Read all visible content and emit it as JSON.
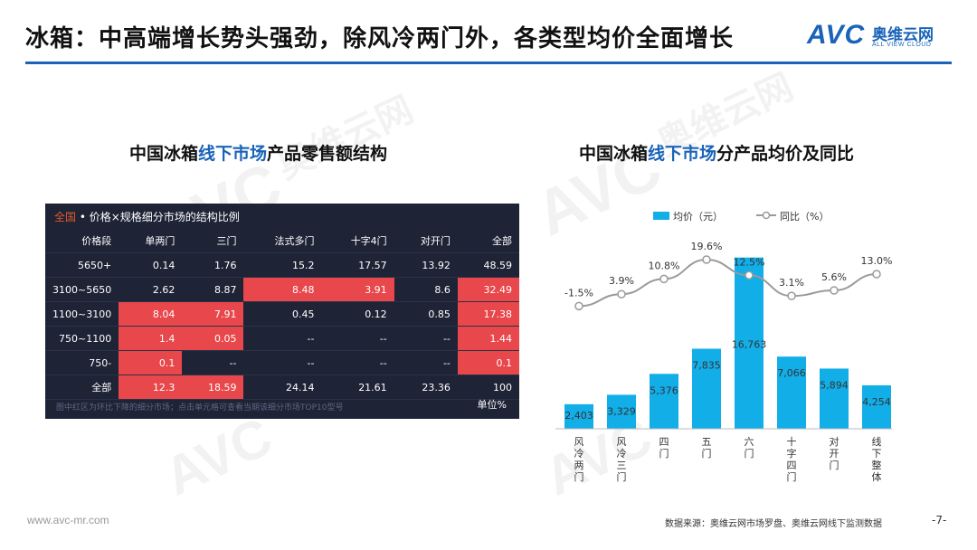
{
  "title": "冰箱：中高端增长势头强劲，除风冷两门外，各类型均价全面增长",
  "logo": {
    "avc": "AVC",
    "cn": "奥维云网",
    "en": "ALL VIEW CLOUD"
  },
  "watermark": {
    "cn": "奥维云网",
    "en": "ALL VIEW CLOUD",
    "avc": "AVC"
  },
  "left_section": {
    "title_pre": "中国冰箱",
    "title_hl": "线下市场",
    "title_post": "产品零售额结构"
  },
  "right_section": {
    "title_pre": "中国冰箱",
    "title_hl": "线下市场",
    "title_post": "分产品均价及同比"
  },
  "table": {
    "header_scope": "全国",
    "header_rest": " • 价格×规格细分市场的结构比例",
    "columns": [
      "价格段",
      "单两门",
      "三门",
      "法式多门",
      "十字4门",
      "对开门",
      "全部"
    ],
    "rows": [
      {
        "label": "5650+",
        "cells": [
          "0.14",
          "1.76",
          "15.2",
          "17.57",
          "13.92",
          "48.59"
        ],
        "red": [
          false,
          false,
          false,
          false,
          false,
          false
        ]
      },
      {
        "label": "3100~5650",
        "cells": [
          "2.62",
          "8.87",
          "8.48",
          "3.91",
          "8.6",
          "32.49"
        ],
        "red": [
          false,
          false,
          true,
          true,
          false,
          true
        ]
      },
      {
        "label": "1100~3100",
        "cells": [
          "8.04",
          "7.91",
          "0.45",
          "0.12",
          "0.85",
          "17.38"
        ],
        "red": [
          true,
          true,
          false,
          false,
          false,
          true
        ]
      },
      {
        "label": "750~1100",
        "cells": [
          "1.4",
          "0.05",
          "--",
          "--",
          "--",
          "1.44"
        ],
        "red": [
          true,
          true,
          false,
          false,
          false,
          true
        ]
      },
      {
        "label": "750-",
        "cells": [
          "0.1",
          "--",
          "--",
          "--",
          "--",
          "0.1"
        ],
        "red": [
          true,
          false,
          false,
          false,
          false,
          true
        ]
      },
      {
        "label": "全部",
        "cells": [
          "12.3",
          "18.59",
          "24.14",
          "21.61",
          "23.36",
          "100"
        ],
        "red": [
          true,
          true,
          false,
          false,
          false,
          false
        ]
      }
    ],
    "note": "图中红区为环比下降的细分市场；点击单元格可查看当期该细分市场TOP10型号",
    "unit": "单位%"
  },
  "chart_data": {
    "type": "bar",
    "categories": [
      "风冷两门",
      "风冷三门",
      "四门",
      "五门",
      "六门",
      "十字四门",
      "对开门",
      "线下整体"
    ],
    "series": [
      {
        "name": "均价（元）",
        "type": "bar",
        "values": [
          2403,
          3329,
          5376,
          7835,
          16763,
          7066,
          5894,
          4254
        ],
        "labels": [
          "2,403",
          "3,329",
          "5,376",
          "7,835",
          "16,763",
          "7,066",
          "5,894",
          "4,254"
        ]
      },
      {
        "name": "同比（%）",
        "type": "line",
        "values": [
          -1.5,
          3.9,
          10.8,
          19.6,
          12.5,
          3.1,
          5.6,
          13.0
        ],
        "labels": [
          "-1.5%",
          "3.9%",
          "10.8%",
          "19.6%",
          "12.5%",
          "3.1%",
          "5.6%",
          "13.0%"
        ]
      }
    ],
    "legend_position": "top",
    "grid": false,
    "colors": {
      "bar": "#12aee8",
      "line": "#9a9a9a"
    }
  },
  "footer": {
    "site": "www.avc-mr.com",
    "source": "数据来源：奥维云网市场罗盘、奥维云网线下监测数据",
    "page": "-7-"
  }
}
